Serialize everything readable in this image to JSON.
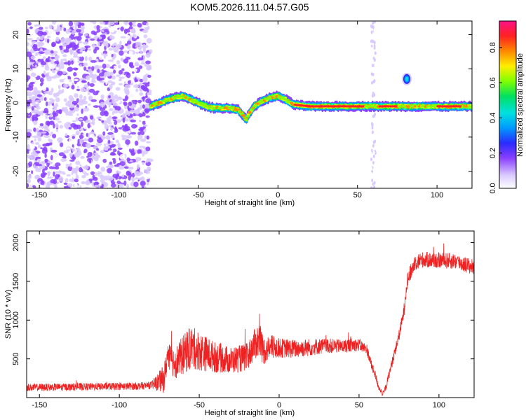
{
  "figure_title": "KOM5.2026.111.04.57.G05",
  "colors": {
    "snr_line": "#ee2222",
    "axis": "#000000",
    "background": "#ffffff"
  },
  "chart_data": [
    {
      "type": "heatmap",
      "xlabel": "Height of straight line (km)",
      "ylabel": "Frequency (Hz)",
      "xlim": [
        -158,
        122
      ],
      "ylim": [
        -25,
        24
      ],
      "xticks": [
        -150,
        -100,
        -50,
        0,
        50,
        100
      ],
      "yticks": [
        -20,
        -10,
        0,
        10,
        20
      ],
      "colorbar": {
        "label": "Normalized spectral amplitude",
        "range": [
          0,
          0.95
        ],
        "ticks": [
          0.0,
          0.2,
          0.4,
          0.6,
          0.8
        ]
      },
      "noise_region_x": [
        -158,
        -80
      ],
      "ridge": {
        "x": [
          -80,
          -72,
          -65,
          -60,
          -55,
          -50,
          -45,
          -40,
          -35,
          -30,
          -25,
          -22,
          -20,
          -18,
          -15,
          -10,
          -5,
          0,
          5,
          10,
          20,
          40,
          60,
          80,
          100,
          122
        ],
        "y": [
          -1,
          0.5,
          1.5,
          2,
          1,
          0,
          -1,
          -1.5,
          -1.5,
          -1.5,
          -2,
          -3.5,
          -5,
          -3,
          -1,
          0.5,
          1.5,
          2,
          1,
          -0.5,
          -1,
          -1,
          -1,
          -1,
          -1,
          -1
        ]
      },
      "spike_lines_x": [
        60
      ],
      "spot": {
        "x": 81,
        "y": 7,
        "amp": 0.3
      }
    },
    {
      "type": "line",
      "xlabel": "Height of straight line (km)",
      "ylabel": "SNR (10 * v/v)",
      "xlim": [
        -158,
        122
      ],
      "ylim": [
        0,
        2150
      ],
      "xticks": [
        -150,
        -100,
        -50,
        0,
        50,
        100
      ],
      "yticks": [
        500,
        1000,
        1500,
        2000
      ],
      "series": [
        {
          "name": "SNR",
          "x": [
            -158,
            -120,
            -100,
            -85,
            -80,
            -72,
            -70,
            -65,
            -60,
            -55,
            -50,
            -45,
            -40,
            -35,
            -30,
            -25,
            -20,
            -15,
            -12,
            -10,
            -5,
            0,
            10,
            20,
            30,
            40,
            45,
            50,
            55,
            58,
            60,
            62,
            65,
            67,
            70,
            75,
            78,
            80,
            85,
            90,
            100,
            110,
            122
          ],
          "y": [
            130,
            140,
            145,
            150,
            160,
            240,
            520,
            450,
            550,
            650,
            600,
            560,
            520,
            500,
            480,
            500,
            520,
            700,
            750,
            600,
            650,
            640,
            630,
            650,
            670,
            660,
            680,
            680,
            620,
            400,
            300,
            150,
            40,
            150,
            400,
            800,
            1100,
            1500,
            1750,
            1780,
            1770,
            1760,
            1680
          ],
          "noise": [
            60,
            60,
            60,
            60,
            60,
            230,
            220,
            260,
            320,
            350,
            320,
            280,
            250,
            230,
            220,
            220,
            230,
            250,
            320,
            230,
            200,
            160,
            150,
            140,
            120,
            110,
            110,
            100,
            90,
            80,
            70,
            50,
            40,
            60,
            80,
            90,
            110,
            130,
            140,
            130,
            130,
            130,
            130
          ]
        }
      ]
    }
  ]
}
